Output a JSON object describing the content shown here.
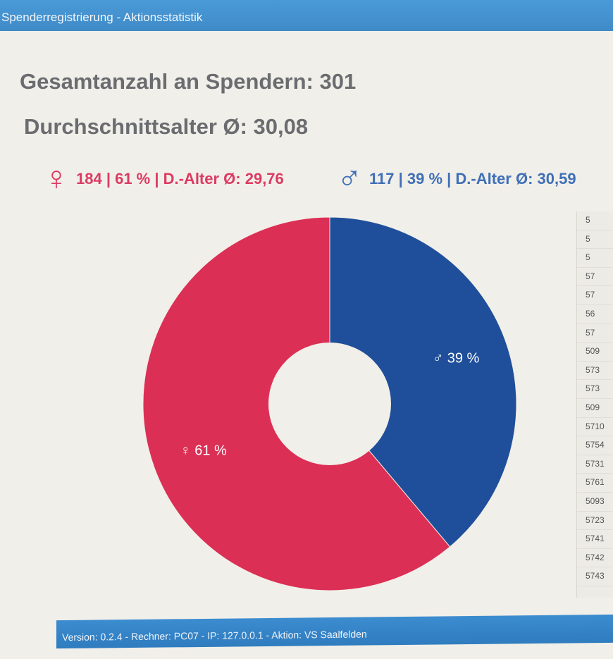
{
  "window": {
    "title": "Spenderregistrierung - Aktionsstatistik"
  },
  "summary": {
    "total": "Gesamtanzahl an Spendern: 301",
    "avg_age": "Durchschnittsalter Ø: 30,08"
  },
  "legend": {
    "female": {
      "symbol": "♀",
      "text": "184 | 61 % | D.-Alter Ø: 29,76",
      "color": "#dc3b63"
    },
    "male": {
      "symbol": "♂",
      "text": "117 | 39 % | D.-Alter Ø: 30,59",
      "color": "#3f6fb7"
    }
  },
  "chart_data": {
    "type": "pie",
    "donut": true,
    "categories": [
      "male",
      "female"
    ],
    "values": [
      117,
      184
    ],
    "labels": [
      "♂ 39 %",
      "♀ 61 %"
    ],
    "colors": [
      "#1f4f9a",
      "#dc2f55"
    ]
  },
  "side_list": [
    "5",
    "5",
    "5",
    "57",
    "57",
    "56",
    "57",
    "509",
    "573",
    "573",
    "509",
    "5710",
    "5754",
    "5731",
    "5761",
    "5093",
    "5723",
    "5741",
    "5742",
    "5743"
  ],
  "footer": {
    "text": "Version: 0.2.4 - Rechner: PC07 - IP: 127.0.0.1 - Aktion: VS Saalfelden"
  }
}
